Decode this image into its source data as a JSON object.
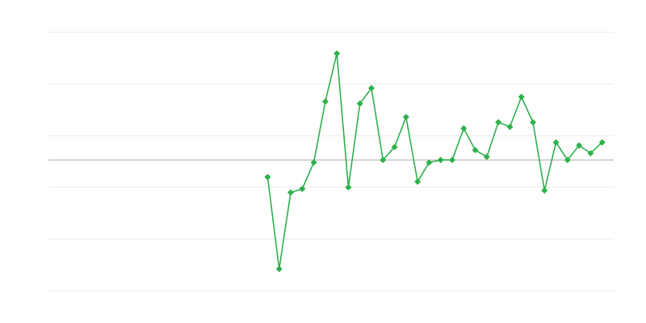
{
  "chart_data": {
    "type": "line",
    "title": "",
    "xlabel": "",
    "ylabel": "",
    "x_count": 50,
    "x_start_index": 19,
    "values": [
      -0.33,
      -2.11,
      -0.63,
      -0.56,
      -0.05,
      1.13,
      2.06,
      -0.53,
      1.09,
      1.39,
      0.0,
      0.25,
      0.83,
      -0.42,
      -0.05,
      0.0,
      0.0,
      0.61,
      0.19,
      0.06,
      0.73,
      0.64,
      1.22,
      0.73,
      -0.59,
      0.34,
      0.0,
      0.28,
      0.13,
      0.34
    ],
    "ylim": [
      -2.53,
      2.47
    ],
    "grid": true,
    "gridline_count": 6,
    "zero_line": true,
    "marker": "diamond",
    "colors": {
      "series": "#2db14a",
      "grid": "#ebebeb",
      "zero_line": "#aaaaaa"
    }
  }
}
